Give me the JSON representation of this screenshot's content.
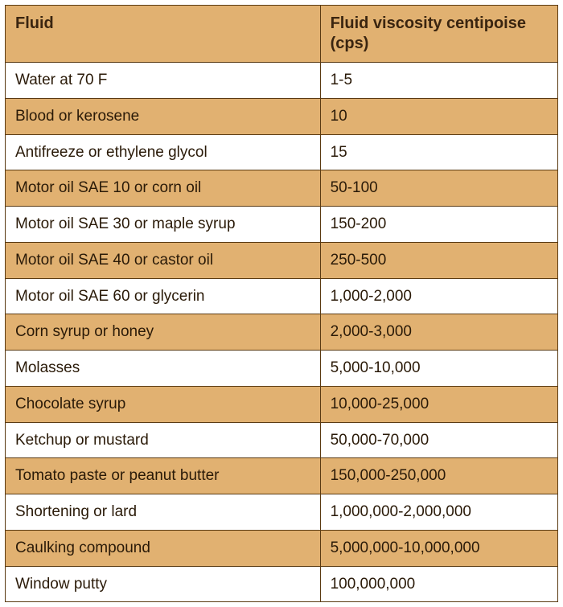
{
  "table": {
    "type": "table",
    "header_bg": "#e1b171",
    "alt_row_bg": "#e1b171",
    "plain_row_bg": "#ffffff",
    "border_color": "#5a3a12",
    "text_color": "#2a1a08",
    "header_text_color": "#3a2510",
    "font_family": "Segoe UI, Helvetica Neue, Arial, sans-serif",
    "header_fontsize_pt": 15,
    "cell_fontsize_pt": 14,
    "column_widths_pct": [
      57,
      43
    ],
    "columns": [
      "Fluid",
      "Fluid viscosity centipoise (cps)"
    ],
    "rows": [
      {
        "fluid": "Water at 70 F",
        "viscosity": "1-5",
        "alt": false
      },
      {
        "fluid": "Blood or kerosene",
        "viscosity": "10",
        "alt": true
      },
      {
        "fluid": "Antifreeze or ethylene glycol",
        "viscosity": "15",
        "alt": false
      },
      {
        "fluid": "Motor oil SAE 10 or corn oil",
        "viscosity": "50-100",
        "alt": true
      },
      {
        "fluid": "Motor oil SAE 30 or maple syrup",
        "viscosity": "150-200",
        "alt": false
      },
      {
        "fluid": "Motor oil SAE 40 or castor oil",
        "viscosity": "250-500",
        "alt": true
      },
      {
        "fluid": "Motor oil SAE 60 or glycerin",
        "viscosity": "1,000-2,000",
        "alt": false
      },
      {
        "fluid": "Corn syrup or honey",
        "viscosity": "2,000-3,000",
        "alt": true
      },
      {
        "fluid": "Molasses",
        "viscosity": "5,000-10,000",
        "alt": false
      },
      {
        "fluid": "Chocolate syrup",
        "viscosity": "10,000-25,000",
        "alt": true
      },
      {
        "fluid": "Ketchup or mustard",
        "viscosity": "50,000-70,000",
        "alt": false
      },
      {
        "fluid": "Tomato paste or peanut butter",
        "viscosity": "150,000-250,000",
        "alt": true
      },
      {
        "fluid": "Shortening or lard",
        "viscosity": "1,000,000-2,000,000",
        "alt": false
      },
      {
        "fluid": "Caulking compound",
        "viscosity": "5,000,000-10,000,000",
        "alt": true
      },
      {
        "fluid": "Window putty",
        "viscosity": "100,000,000",
        "alt": false
      }
    ]
  }
}
